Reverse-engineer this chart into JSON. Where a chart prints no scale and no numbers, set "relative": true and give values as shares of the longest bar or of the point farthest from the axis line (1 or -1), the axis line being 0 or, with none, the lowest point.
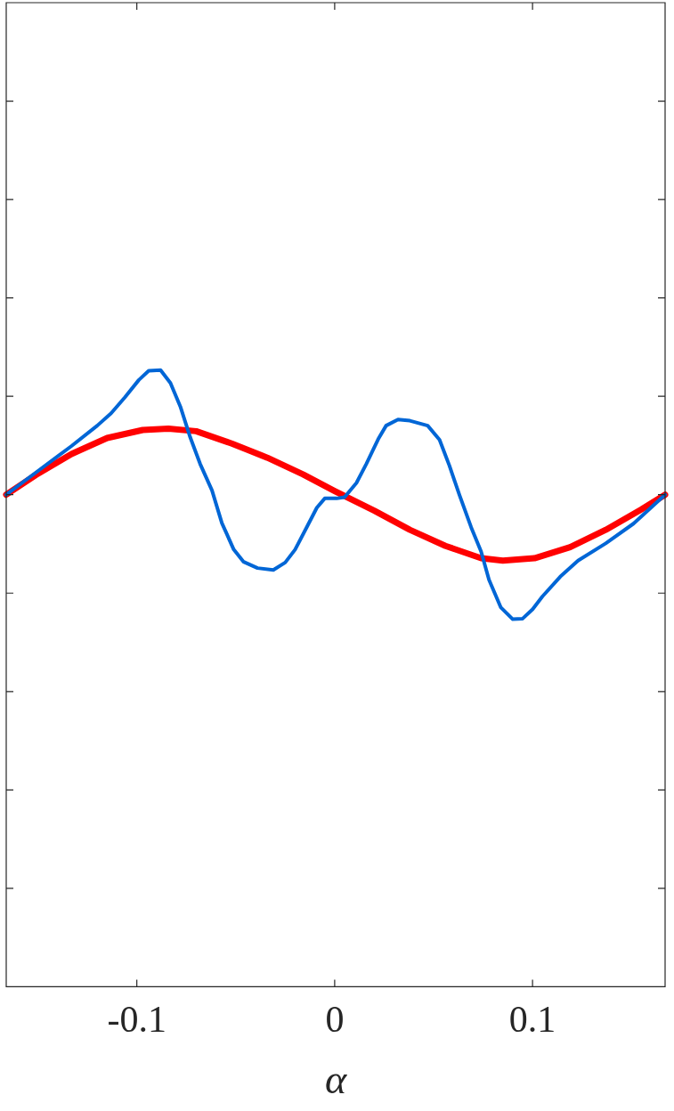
{
  "chart_data": {
    "type": "line",
    "xlabel": "α",
    "relative": true,
    "tick_labels": "x",
    "grid": false,
    "legend": false,
    "marker": "none",
    "line_style": "solid",
    "xlim": [
      -0.166,
      0.167
    ],
    "xticks": [
      -0.1,
      0,
      0.1
    ],
    "series": [
      {
        "color": "#0066d6",
        "x": [
          -0.166,
          -0.151,
          -0.133,
          -0.12,
          -0.113,
          -0.106,
          -0.099,
          -0.094,
          -0.088,
          -0.083,
          -0.078,
          -0.073,
          -0.068,
          -0.062,
          -0.057,
          -0.051,
          -0.046,
          -0.039,
          -0.031,
          -0.025,
          -0.02,
          -0.014,
          -0.009,
          -0.005,
          0.001,
          0.005,
          0.011,
          0.016,
          0.022,
          0.026,
          0.032,
          0.038,
          0.047,
          0.053,
          0.058,
          0.063,
          0.069,
          0.074,
          0.078,
          0.084,
          0.09,
          0.095,
          0.1,
          0.105,
          0.114,
          0.123,
          0.137,
          0.151,
          0.167
        ],
        "values": [
          0.798,
          0.834,
          0.877,
          0.91,
          0.93,
          0.956,
          0.984,
          0.999,
          1.0,
          0.979,
          0.941,
          0.891,
          0.848,
          0.805,
          0.752,
          0.709,
          0.689,
          0.679,
          0.676,
          0.688,
          0.709,
          0.746,
          0.777,
          0.792,
          0.792,
          0.794,
          0.817,
          0.848,
          0.888,
          0.91,
          0.92,
          0.918,
          0.91,
          0.887,
          0.845,
          0.798,
          0.745,
          0.706,
          0.66,
          0.615,
          0.596,
          0.597,
          0.612,
          0.633,
          0.665,
          0.691,
          0.719,
          0.751,
          0.798
        ]
      },
      {
        "color": "#ff0000",
        "x": [
          -0.166,
          -0.151,
          -0.133,
          -0.115,
          -0.097,
          -0.084,
          -0.07,
          -0.052,
          -0.034,
          -0.016,
          0,
          0.02,
          0.038,
          0.056,
          0.074,
          0.085,
          0.101,
          0.119,
          0.137,
          0.155,
          0.167
        ],
        "values": [
          0.798,
          0.83,
          0.864,
          0.89,
          0.903,
          0.905,
          0.901,
          0.881,
          0.858,
          0.831,
          0.804,
          0.772,
          0.741,
          0.715,
          0.695,
          0.691,
          0.695,
          0.713,
          0.741,
          0.774,
          0.798
        ]
      }
    ]
  }
}
